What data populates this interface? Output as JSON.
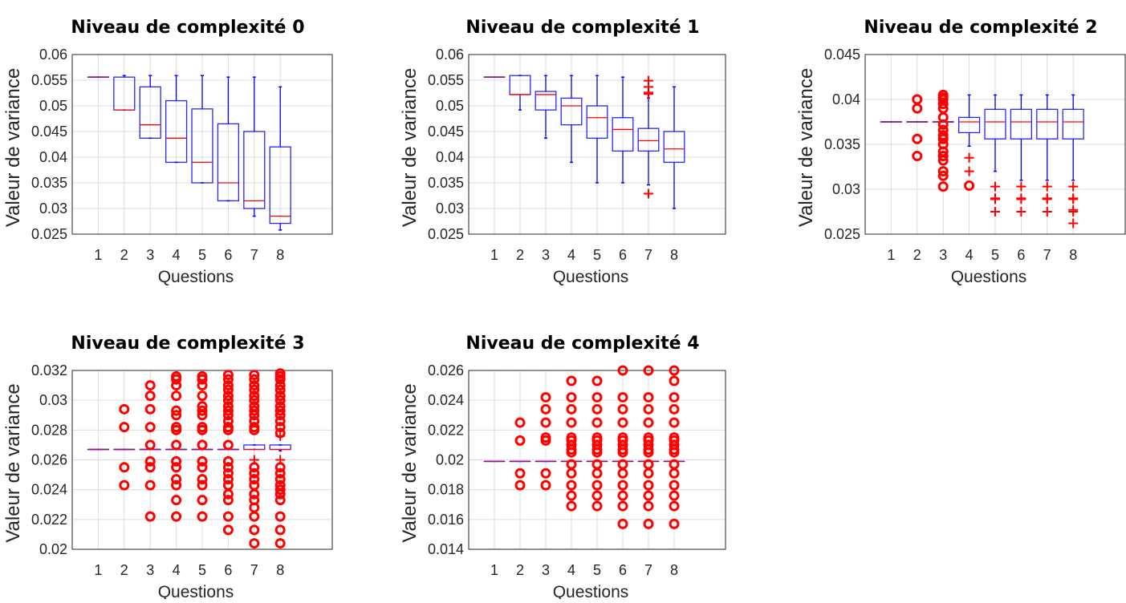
{
  "chart_data": [
    {
      "type": "box",
      "title": "Niveau de complexité 0",
      "xlabel": "Questions",
      "ylabel": "Valeur de variance",
      "categories": [
        "1",
        "2",
        "3",
        "4",
        "5",
        "6",
        "7",
        "8"
      ],
      "xlim": [
        0,
        10
      ],
      "ylim": [
        0.025,
        0.06
      ],
      "yticks": [
        "0.025",
        "0.03",
        "0.035",
        "0.04",
        "0.045",
        "0.05",
        "0.055",
        "0.06"
      ],
      "grid": true,
      "boxes": [
        {
          "q1": 0.0556,
          "median": 0.0556,
          "q3": 0.0556,
          "whisker_low": 0.0556,
          "whisker_high": 0.0556,
          "outliers": [],
          "plus_outliers": []
        },
        {
          "q1": 0.0492,
          "median": 0.0492,
          "q3": 0.0556,
          "whisker_low": 0.0492,
          "whisker_high": 0.0559,
          "outliers": [],
          "plus_outliers": []
        },
        {
          "q1": 0.0437,
          "median": 0.0463,
          "q3": 0.0537,
          "whisker_low": 0.0437,
          "whisker_high": 0.0559,
          "outliers": [],
          "plus_outliers": []
        },
        {
          "q1": 0.039,
          "median": 0.0437,
          "q3": 0.051,
          "whisker_low": 0.039,
          "whisker_high": 0.0559,
          "outliers": [],
          "plus_outliers": []
        },
        {
          "q1": 0.035,
          "median": 0.039,
          "q3": 0.0494,
          "whisker_low": 0.035,
          "whisker_high": 0.0559,
          "outliers": [],
          "plus_outliers": []
        },
        {
          "q1": 0.0315,
          "median": 0.035,
          "q3": 0.0465,
          "whisker_low": 0.0315,
          "whisker_high": 0.0556,
          "outliers": [],
          "plus_outliers": []
        },
        {
          "q1": 0.03,
          "median": 0.0315,
          "q3": 0.045,
          "whisker_low": 0.0285,
          "whisker_high": 0.0556,
          "outliers": [],
          "plus_outliers": []
        },
        {
          "q1": 0.0271,
          "median": 0.0285,
          "q3": 0.042,
          "whisker_low": 0.0258,
          "whisker_high": 0.0537,
          "outliers": [],
          "plus_outliers": []
        }
      ]
    },
    {
      "type": "box",
      "title": "Niveau de complexité 1",
      "xlabel": "Questions",
      "ylabel": "Valeur de variance",
      "categories": [
        "1",
        "2",
        "3",
        "4",
        "5",
        "6",
        "7",
        "8"
      ],
      "xlim": [
        0,
        10
      ],
      "ylim": [
        0.025,
        0.06
      ],
      "yticks": [
        "0.025",
        "0.03",
        "0.035",
        "0.04",
        "0.045",
        "0.05",
        "0.055",
        "0.06"
      ],
      "grid": true,
      "boxes": [
        {
          "q1": 0.0556,
          "median": 0.0556,
          "q3": 0.0556,
          "whisker_low": 0.0556,
          "whisker_high": 0.0556,
          "outliers": [],
          "plus_outliers": []
        },
        {
          "q1": 0.0522,
          "median": 0.0522,
          "q3": 0.0559,
          "whisker_low": 0.0492,
          "whisker_high": 0.0559,
          "outliers": [],
          "plus_outliers": []
        },
        {
          "q1": 0.0492,
          "median": 0.0522,
          "q3": 0.0528,
          "whisker_low": 0.0437,
          "whisker_high": 0.0559,
          "outliers": [],
          "plus_outliers": []
        },
        {
          "q1": 0.0463,
          "median": 0.05,
          "q3": 0.0515,
          "whisker_low": 0.039,
          "whisker_high": 0.0559,
          "outliers": [],
          "plus_outliers": []
        },
        {
          "q1": 0.0437,
          "median": 0.0477,
          "q3": 0.05,
          "whisker_low": 0.035,
          "whisker_high": 0.0559,
          "outliers": [],
          "plus_outliers": []
        },
        {
          "q1": 0.0412,
          "median": 0.0454,
          "q3": 0.0477,
          "whisker_low": 0.035,
          "whisker_high": 0.0556,
          "outliers": [],
          "plus_outliers": []
        },
        {
          "q1": 0.0412,
          "median": 0.0432,
          "q3": 0.0456,
          "whisker_low": 0.0346,
          "whisker_high": 0.0515,
          "outliers": [],
          "plus_outliers": [
            0.0523,
            0.0526,
            0.0537,
            0.0549,
            0.0329
          ]
        },
        {
          "q1": 0.039,
          "median": 0.0416,
          "q3": 0.045,
          "whisker_low": 0.03,
          "whisker_high": 0.0537,
          "outliers": [],
          "plus_outliers": []
        }
      ]
    },
    {
      "type": "box",
      "title": "Niveau de complexité 2",
      "xlabel": "Questions",
      "ylabel": "Valeur de variance",
      "categories": [
        "1",
        "2",
        "3",
        "4",
        "5",
        "6",
        "7",
        "8"
      ],
      "xlim": [
        0,
        10
      ],
      "ylim": [
        0.025,
        0.045
      ],
      "yticks": [
        "0.025",
        "0.03",
        "0.035",
        "0.04",
        "0.045"
      ],
      "grid": true,
      "boxes": [
        {
          "q1": 0.0375,
          "median": 0.0375,
          "q3": 0.0375,
          "whisker_low": 0.0375,
          "whisker_high": 0.0375,
          "outliers": [],
          "plus_outliers": []
        },
        {
          "q1": 0.0375,
          "median": 0.0375,
          "q3": 0.0375,
          "whisker_low": 0.0375,
          "whisker_high": 0.0375,
          "outliers": [
            0.04,
            0.039,
            0.0356,
            0.0337
          ],
          "plus_outliers": []
        },
        {
          "q1": 0.0375,
          "median": 0.0375,
          "q3": 0.0375,
          "whisker_low": 0.0375,
          "whisker_high": 0.0375,
          "outliers": [
            0.0405,
            0.0402,
            0.04,
            0.0395,
            0.039,
            0.038,
            0.0372,
            0.0366,
            0.036,
            0.0356,
            0.035,
            0.0342,
            0.0337,
            0.0332,
            0.032,
            0.0315,
            0.0303
          ],
          "plus_outliers": []
        },
        {
          "q1": 0.0363,
          "median": 0.0375,
          "q3": 0.038,
          "whisker_low": 0.0348,
          "whisker_high": 0.0405,
          "outliers": [
            0.0304
          ],
          "plus_outliers": [
            0.0335,
            0.032
          ]
        },
        {
          "q1": 0.0356,
          "median": 0.0375,
          "q3": 0.0389,
          "whisker_low": 0.032,
          "whisker_high": 0.0405,
          "outliers": [],
          "plus_outliers": [
            0.0303,
            0.029,
            0.0289,
            0.0275
          ]
        },
        {
          "q1": 0.0356,
          "median": 0.0375,
          "q3": 0.0389,
          "whisker_low": 0.031,
          "whisker_high": 0.0405,
          "outliers": [],
          "plus_outliers": [
            0.0303,
            0.029,
            0.0289,
            0.0275
          ]
        },
        {
          "q1": 0.0356,
          "median": 0.0375,
          "q3": 0.0389,
          "whisker_low": 0.031,
          "whisker_high": 0.0405,
          "outliers": [],
          "plus_outliers": [
            0.0303,
            0.029,
            0.0289,
            0.0275
          ]
        },
        {
          "q1": 0.0356,
          "median": 0.0375,
          "q3": 0.0389,
          "whisker_low": 0.031,
          "whisker_high": 0.0405,
          "outliers": [],
          "plus_outliers": [
            0.0303,
            0.029,
            0.0289,
            0.0277,
            0.0275,
            0.0262
          ]
        }
      ]
    },
    {
      "type": "box",
      "title": "Niveau de complexité 3",
      "xlabel": "Questions",
      "ylabel": "Valeur de variance",
      "categories": [
        "1",
        "2",
        "3",
        "4",
        "5",
        "6",
        "7",
        "8"
      ],
      "xlim": [
        0,
        10
      ],
      "ylim": [
        0.02,
        0.032
      ],
      "yticks": [
        "0.02",
        "0.022",
        "0.024",
        "0.026",
        "0.028",
        "0.03",
        "0.032"
      ],
      "grid": true,
      "boxes": [
        {
          "q1": 0.0267,
          "median": 0.0267,
          "q3": 0.0267,
          "whisker_low": 0.0267,
          "whisker_high": 0.0267,
          "outliers": [],
          "plus_outliers": []
        },
        {
          "q1": 0.0267,
          "median": 0.0267,
          "q3": 0.0267,
          "whisker_low": 0.0267,
          "whisker_high": 0.0267,
          "outliers": [
            0.0294,
            0.0282,
            0.0255,
            0.0243
          ],
          "plus_outliers": []
        },
        {
          "q1": 0.0267,
          "median": 0.0267,
          "q3": 0.0267,
          "whisker_low": 0.0267,
          "whisker_high": 0.0267,
          "outliers": [
            0.031,
            0.0303,
            0.0294,
            0.0282,
            0.027,
            0.0259,
            0.0255,
            0.0243,
            0.0222
          ],
          "plus_outliers": []
        },
        {
          "q1": 0.0267,
          "median": 0.0267,
          "q3": 0.0267,
          "whisker_low": 0.0267,
          "whisker_high": 0.0267,
          "outliers": [
            0.0316,
            0.0314,
            0.031,
            0.0303,
            0.0293,
            0.029,
            0.0282,
            0.028,
            0.027,
            0.0259,
            0.0255,
            0.0247,
            0.0243,
            0.0233,
            0.0222
          ],
          "plus_outliers": []
        },
        {
          "q1": 0.0267,
          "median": 0.0267,
          "q3": 0.0267,
          "whisker_low": 0.0267,
          "whisker_high": 0.0267,
          "outliers": [
            0.0316,
            0.0314,
            0.031,
            0.0303,
            0.0296,
            0.0293,
            0.029,
            0.0282,
            0.028,
            0.027,
            0.0259,
            0.0255,
            0.0247,
            0.0243,
            0.0233,
            0.0222
          ],
          "plus_outliers": []
        },
        {
          "q1": 0.0267,
          "median": 0.0267,
          "q3": 0.0267,
          "whisker_low": 0.0267,
          "whisker_high": 0.0267,
          "outliers": [
            0.0317,
            0.0314,
            0.031,
            0.0307,
            0.0303,
            0.03,
            0.0296,
            0.0293,
            0.029,
            0.0286,
            0.0282,
            0.028,
            0.027,
            0.0259,
            0.0255,
            0.0251,
            0.0247,
            0.0243,
            0.0237,
            0.0233,
            0.0222,
            0.0213
          ],
          "plus_outliers": []
        },
        {
          "q1": 0.0267,
          "median": 0.0267,
          "q3": 0.027,
          "whisker_low": 0.0267,
          "whisker_high": 0.027,
          "outliers": [
            0.0317,
            0.0314,
            0.031,
            0.0307,
            0.0303,
            0.03,
            0.0296,
            0.0293,
            0.029,
            0.0286,
            0.0282,
            0.028,
            0.0255,
            0.0251,
            0.0247,
            0.0243,
            0.0237,
            0.0233,
            0.0228,
            0.0222,
            0.0213,
            0.0204
          ],
          "plus_outliers": [
            0.026
          ]
        },
        {
          "q1": 0.0267,
          "median": 0.0267,
          "q3": 0.027,
          "whisker_low": 0.0266,
          "whisker_high": 0.027,
          "outliers": [
            0.0318,
            0.0316,
            0.0314,
            0.031,
            0.0307,
            0.0303,
            0.03,
            0.0296,
            0.0293,
            0.029,
            0.0286,
            0.0282,
            0.0278,
            0.0255,
            0.0251,
            0.0247,
            0.0243,
            0.024,
            0.0237,
            0.0233,
            0.0222,
            0.0213,
            0.0204
          ],
          "plus_outliers": [
            0.0276,
            0.026
          ]
        }
      ]
    },
    {
      "type": "box",
      "title": "Niveau de complexité 4",
      "xlabel": "Questions",
      "ylabel": "Valeur de variance",
      "categories": [
        "1",
        "2",
        "3",
        "4",
        "5",
        "6",
        "7",
        "8"
      ],
      "xlim": [
        0,
        10
      ],
      "ylim": [
        0.014,
        0.026
      ],
      "yticks": [
        "0.014",
        "0.016",
        "0.018",
        "0.02",
        "0.022",
        "0.024",
        "0.026"
      ],
      "grid": true,
      "boxes": [
        {
          "q1": 0.0199,
          "median": 0.0199,
          "q3": 0.0199,
          "whisker_low": 0.0199,
          "whisker_high": 0.0199,
          "outliers": [],
          "plus_outliers": []
        },
        {
          "q1": 0.0199,
          "median": 0.0199,
          "q3": 0.0199,
          "whisker_low": 0.0199,
          "whisker_high": 0.0199,
          "outliers": [
            0.0225,
            0.0213,
            0.0191,
            0.0183
          ],
          "plus_outliers": []
        },
        {
          "q1": 0.0199,
          "median": 0.0199,
          "q3": 0.0199,
          "whisker_low": 0.0199,
          "whisker_high": 0.0199,
          "outliers": [
            0.0242,
            0.0234,
            0.0225,
            0.0215,
            0.0213,
            0.0191,
            0.0183
          ],
          "plus_outliers": []
        },
        {
          "q1": 0.0199,
          "median": 0.0199,
          "q3": 0.0199,
          "whisker_low": 0.0199,
          "whisker_high": 0.0199,
          "outliers": [
            0.0253,
            0.0242,
            0.0234,
            0.0225,
            0.0215,
            0.0213,
            0.021,
            0.0207,
            0.0205,
            0.0197,
            0.0191,
            0.0183,
            0.0176,
            0.0169
          ],
          "plus_outliers": []
        },
        {
          "q1": 0.0199,
          "median": 0.0199,
          "q3": 0.0199,
          "whisker_low": 0.0199,
          "whisker_high": 0.0199,
          "outliers": [
            0.0253,
            0.0242,
            0.0234,
            0.0225,
            0.0215,
            0.0213,
            0.021,
            0.0207,
            0.0205,
            0.0197,
            0.0191,
            0.0183,
            0.0176,
            0.0169
          ],
          "plus_outliers": []
        },
        {
          "q1": 0.0199,
          "median": 0.0199,
          "q3": 0.0199,
          "whisker_low": 0.0199,
          "whisker_high": 0.0199,
          "outliers": [
            0.026,
            0.0242,
            0.0234,
            0.0225,
            0.0215,
            0.0213,
            0.021,
            0.0207,
            0.0205,
            0.0197,
            0.0191,
            0.0183,
            0.0176,
            0.0169,
            0.0157
          ],
          "plus_outliers": []
        },
        {
          "q1": 0.0199,
          "median": 0.0199,
          "q3": 0.0199,
          "whisker_low": 0.0199,
          "whisker_high": 0.0199,
          "outliers": [
            0.026,
            0.0242,
            0.0234,
            0.0225,
            0.0215,
            0.0213,
            0.021,
            0.0207,
            0.0205,
            0.0197,
            0.0191,
            0.0183,
            0.0176,
            0.0169,
            0.0157
          ],
          "plus_outliers": []
        },
        {
          "q1": 0.0199,
          "median": 0.0199,
          "q3": 0.0199,
          "whisker_low": 0.0199,
          "whisker_high": 0.0199,
          "outliers": [
            0.026,
            0.0253,
            0.0242,
            0.0234,
            0.0225,
            0.0215,
            0.0213,
            0.021,
            0.0207,
            0.0205,
            0.0197,
            0.0191,
            0.0183,
            0.0176,
            0.0169,
            0.0157
          ],
          "plus_outliers": []
        }
      ]
    }
  ],
  "colors": {
    "box": "#0000ff",
    "median": "#ff0000",
    "outlier": "#ff0000",
    "grid": "#dcdcdc",
    "axis": "#262626"
  }
}
